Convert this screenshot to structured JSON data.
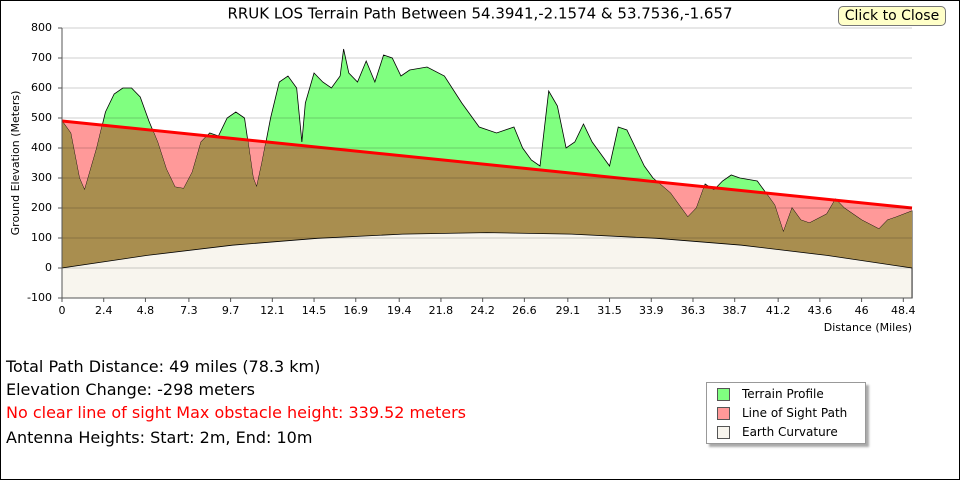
{
  "chart_data": {
    "type": "area",
    "title": "RRUK LOS Terrain Path Between 54.3941,-2.1574 & 53.7536,-1.657",
    "x_label": "Distance (Miles)",
    "y_label": "Ground Elevation (Meters)",
    "xlim": [
      0,
      48.9
    ],
    "ylim": [
      -100,
      800
    ],
    "xticks": [
      0,
      2.4,
      4.8,
      7.3,
      9.7,
      12.1,
      14.5,
      16.9,
      19.4,
      21.8,
      24.2,
      26.6,
      29.1,
      31.5,
      33.9,
      36.3,
      38.7,
      41.2,
      43.6,
      46,
      48.4
    ],
    "yticks": [
      -100,
      0,
      100,
      200,
      300,
      400,
      500,
      600,
      700,
      800
    ],
    "grid": true,
    "below_color": "#a98e4f",
    "line_color": "#ff0000",
    "series": [
      {
        "name": "Terrain Profile",
        "color": "#80ff80",
        "x": [
          0,
          0.5,
          1,
          1.3,
          2,
          2.5,
          3,
          3.5,
          4,
          4.5,
          5,
          5.5,
          6,
          6.5,
          7,
          7.5,
          8,
          8.5,
          9,
          9.5,
          10,
          10.5,
          11,
          11.2,
          11.5,
          12,
          12.5,
          13,
          13.5,
          13.8,
          14,
          14.5,
          15,
          15.5,
          16,
          16.2,
          16.5,
          17,
          17.5,
          18,
          18.5,
          19,
          19.5,
          20,
          21,
          22,
          23,
          24,
          25,
          26,
          26.5,
          27,
          27.5,
          28,
          28.5,
          29,
          29.5,
          30,
          30.5,
          31,
          31.5,
          32,
          32.5,
          33,
          33.5,
          34,
          35,
          36,
          36.5,
          37,
          37.5,
          38,
          38.5,
          39,
          40,
          41,
          41.5,
          42,
          42.5,
          43,
          44,
          44.5,
          45,
          46,
          47,
          47.5,
          48,
          48.9
        ],
        "values": [
          490,
          450,
          300,
          260,
          400,
          520,
          580,
          600,
          600,
          570,
          490,
          420,
          330,
          270,
          265,
          320,
          420,
          450,
          440,
          500,
          520,
          500,
          300,
          270,
          350,
          500,
          620,
          640,
          600,
          420,
          550,
          650,
          620,
          600,
          640,
          730,
          650,
          620,
          690,
          620,
          710,
          700,
          640,
          660,
          670,
          640,
          550,
          470,
          450,
          470,
          400,
          360,
          340,
          590,
          540,
          400,
          420,
          480,
          420,
          380,
          340,
          470,
          460,
          400,
          340,
          300,
          250,
          170,
          200,
          280,
          260,
          290,
          310,
          300,
          290,
          210,
          120,
          200,
          160,
          150,
          180,
          230,
          200,
          160,
          130,
          160,
          170,
          190
        ]
      },
      {
        "name": "Line of Sight Path",
        "color": "#ff9999",
        "x": [
          0,
          48.9
        ],
        "values": [
          490,
          200
        ]
      },
      {
        "name": "Earth Curvature",
        "color": "#f8f5ee",
        "x": [
          0,
          4.9,
          9.8,
          14.7,
          19.6,
          24.45,
          29.3,
          34.2,
          39.1,
          44,
          48.9
        ],
        "values": [
          0,
          42,
          76,
          99,
          113,
          118,
          113,
          99,
          76,
          42,
          0
        ]
      }
    ]
  },
  "close_button": "Click to Close",
  "info": [
    "Total Path Distance: 49 miles (78.3 km)",
    "Elevation Change: -298 meters",
    "No clear line of sight Max obstacle height: 339.52 meters",
    "Antenna Heights: Start: 2m, End: 10m"
  ]
}
